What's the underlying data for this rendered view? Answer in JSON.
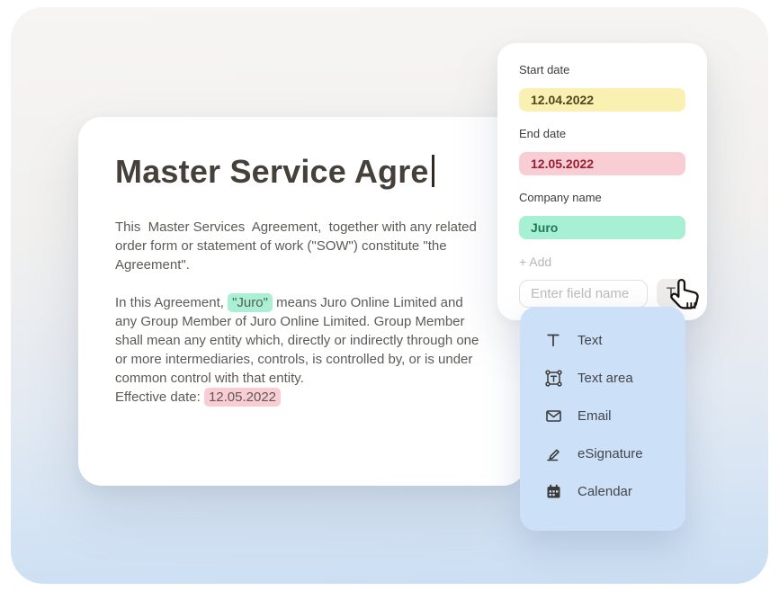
{
  "document": {
    "title": "Master Service Agre",
    "paragraph1": "This  Master Services  Agreement,  together with any related order form or statement of work (\"SOW\") constitute \"the Agreement\".",
    "paragraph2_runs": [
      {
        "text": "In this Agreement, "
      },
      {
        "text": "\"Juro\"",
        "highlight": "green"
      },
      {
        "text": " means Juro Online Limited and any Group Member of Juro Online Limited. Group Member shall mean any entity which, directly or indirectly through one or more intermediaries, controls, is controlled by, or is under common control with that entity.\nEffective date: "
      },
      {
        "text": "12.05.2022",
        "highlight": "pink"
      }
    ]
  },
  "fields_panel": {
    "fields": [
      {
        "label": "Start date",
        "value": "12.04.2022",
        "bg": "#FAF0B1",
        "color": "#4F4620"
      },
      {
        "label": "End date",
        "value": "12.05.2022",
        "bg": "#F8CDD4",
        "color": "#9C1C35"
      },
      {
        "label": "Company name",
        "value": "Juro",
        "bg": "#A7F0D3",
        "color": "#1D7A55"
      }
    ],
    "add_button_label": "+ Add",
    "field_name_input": {
      "value": "",
      "placeholder": "Enter field name"
    },
    "type_button_label": "T"
  },
  "type_dropdown": {
    "items": [
      {
        "icon": "text-icon",
        "label": "Text"
      },
      {
        "icon": "text-area-icon",
        "label": "Text area"
      },
      {
        "icon": "email-icon",
        "label": "Email"
      },
      {
        "icon": "esignature-icon",
        "label": "eSignature"
      },
      {
        "icon": "calendar-icon",
        "label": "Calendar"
      }
    ]
  },
  "colors": {
    "highlight_yellow": "#FAF0B1",
    "highlight_pink": "#F9CDD3",
    "highlight_green": "#A9F0D4",
    "dropdown_background": "#CCE1F8",
    "background_top": "#F6F5F3",
    "background_bottom": "#CBDEF2"
  }
}
